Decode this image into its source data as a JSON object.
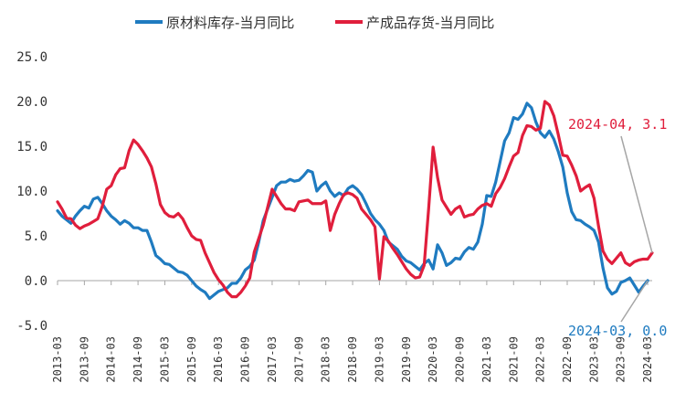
{
  "chart_data": {
    "type": "line",
    "title": "",
    "xlabel": "",
    "ylabel": "",
    "ylim": [
      -5,
      25
    ],
    "yticks": [
      "25.0",
      "20.0",
      "15.0",
      "10.0",
      "5.0",
      "0.0",
      "-5.0"
    ],
    "xticks": [
      "2013-03",
      "2013-09",
      "2014-03",
      "2014-09",
      "2015-03",
      "2015-09",
      "2016-03",
      "2016-09",
      "2017-03",
      "2017-09",
      "2018-03",
      "2018-09",
      "2019-03",
      "2019-09",
      "2020-03",
      "2020-09",
      "2021-03",
      "2021-09",
      "2022-03",
      "2022-09",
      "2023-03",
      "2023-09",
      "2024-03"
    ],
    "grid": false,
    "legend_position": "top",
    "series": [
      {
        "name": "原材料库存-当月同比",
        "color": "#1f7bc0",
        "points": [
          [
            "2013-03",
            7.8
          ],
          [
            "2013-04",
            7.2
          ],
          [
            "2013-05",
            6.8
          ],
          [
            "2013-06",
            6.4
          ],
          [
            "2013-07",
            7.2
          ],
          [
            "2013-08",
            7.8
          ],
          [
            "2013-09",
            8.3
          ],
          [
            "2013-10",
            8.1
          ],
          [
            "2013-11",
            9.1
          ],
          [
            "2013-12",
            9.3
          ],
          [
            "2014-01",
            8.6
          ],
          [
            "2014-02",
            7.8
          ],
          [
            "2014-03",
            7.2
          ],
          [
            "2014-04",
            6.8
          ],
          [
            "2014-05",
            6.3
          ],
          [
            "2014-06",
            6.7
          ],
          [
            "2014-07",
            6.4
          ],
          [
            "2014-08",
            5.9
          ],
          [
            "2014-09",
            5.9
          ],
          [
            "2014-10",
            5.6
          ],
          [
            "2014-11",
            5.6
          ],
          [
            "2014-12",
            4.3
          ],
          [
            "2015-01",
            2.8
          ],
          [
            "2015-02",
            2.4
          ],
          [
            "2015-03",
            1.9
          ],
          [
            "2015-04",
            1.8
          ],
          [
            "2015-05",
            1.4
          ],
          [
            "2015-06",
            1.0
          ],
          [
            "2015-07",
            0.9
          ],
          [
            "2015-08",
            0.6
          ],
          [
            "2015-09",
            0.0
          ],
          [
            "2015-10",
            -0.6
          ],
          [
            "2015-11",
            -1.0
          ],
          [
            "2015-12",
            -1.3
          ],
          [
            "2016-01",
            -2.0
          ],
          [
            "2016-02",
            -1.6
          ],
          [
            "2016-03",
            -1.2
          ],
          [
            "2016-04",
            -1.0
          ],
          [
            "2016-05",
            -0.8
          ],
          [
            "2016-06",
            -0.3
          ],
          [
            "2016-07",
            -0.3
          ],
          [
            "2016-08",
            0.3
          ],
          [
            "2016-09",
            1.2
          ],
          [
            "2016-10",
            1.6
          ],
          [
            "2016-11",
            2.3
          ],
          [
            "2016-12",
            4.3
          ],
          [
            "2017-01",
            6.7
          ],
          [
            "2017-02",
            8.0
          ],
          [
            "2017-03",
            9.3
          ],
          [
            "2017-04",
            10.6
          ],
          [
            "2017-05",
            11.0
          ],
          [
            "2017-06",
            11.0
          ],
          [
            "2017-07",
            11.3
          ],
          [
            "2017-08",
            11.1
          ],
          [
            "2017-09",
            11.2
          ],
          [
            "2017-10",
            11.7
          ],
          [
            "2017-11",
            12.3
          ],
          [
            "2017-12",
            12.1
          ],
          [
            "2018-01",
            10.0
          ],
          [
            "2018-02",
            10.6
          ],
          [
            "2018-03",
            11.0
          ],
          [
            "2018-04",
            10.0
          ],
          [
            "2018-05",
            9.4
          ],
          [
            "2018-06",
            9.8
          ],
          [
            "2018-07",
            9.5
          ],
          [
            "2018-08",
            10.3
          ],
          [
            "2018-09",
            10.6
          ],
          [
            "2018-10",
            10.2
          ],
          [
            "2018-11",
            9.6
          ],
          [
            "2018-12",
            8.6
          ],
          [
            "2019-01",
            7.5
          ],
          [
            "2019-02",
            6.8
          ],
          [
            "2019-03",
            6.3
          ],
          [
            "2019-04",
            5.6
          ],
          [
            "2019-05",
            4.3
          ],
          [
            "2019-06",
            3.9
          ],
          [
            "2019-07",
            3.5
          ],
          [
            "2019-08",
            2.7
          ],
          [
            "2019-09",
            2.2
          ],
          [
            "2019-10",
            2.0
          ],
          [
            "2019-11",
            1.6
          ],
          [
            "2019-12",
            1.2
          ],
          [
            "2020-01",
            1.9
          ],
          [
            "2020-02",
            2.3
          ],
          [
            "2020-03",
            1.3
          ],
          [
            "2020-04",
            4.0
          ],
          [
            "2020-05",
            3.1
          ],
          [
            "2020-06",
            1.7
          ],
          [
            "2020-07",
            2.0
          ],
          [
            "2020-08",
            2.5
          ],
          [
            "2020-09",
            2.4
          ],
          [
            "2020-10",
            3.2
          ],
          [
            "2020-11",
            3.7
          ],
          [
            "2020-12",
            3.5
          ],
          [
            "2021-01",
            4.3
          ],
          [
            "2021-02",
            6.3
          ],
          [
            "2021-03",
            9.5
          ],
          [
            "2021-04",
            9.4
          ],
          [
            "2021-05",
            11.0
          ],
          [
            "2021-06",
            13.3
          ],
          [
            "2021-07",
            15.6
          ],
          [
            "2021-08",
            16.5
          ],
          [
            "2021-09",
            18.2
          ],
          [
            "2021-10",
            18.0
          ],
          [
            "2021-11",
            18.6
          ],
          [
            "2021-12",
            19.8
          ],
          [
            "2022-01",
            19.3
          ],
          [
            "2022-02",
            17.7
          ],
          [
            "2022-03",
            16.5
          ],
          [
            "2022-04",
            16.0
          ],
          [
            "2022-05",
            16.7
          ],
          [
            "2022-06",
            15.8
          ],
          [
            "2022-07",
            14.4
          ],
          [
            "2022-08",
            12.7
          ],
          [
            "2022-09",
            9.8
          ],
          [
            "2022-10",
            7.7
          ],
          [
            "2022-11",
            6.8
          ],
          [
            "2022-12",
            6.7
          ],
          [
            "2023-01",
            6.3
          ],
          [
            "2023-02",
            6.0
          ],
          [
            "2023-03",
            5.6
          ],
          [
            "2023-04",
            4.3
          ],
          [
            "2023-05",
            1.4
          ],
          [
            "2023-06",
            -0.8
          ],
          [
            "2023-07",
            -1.5
          ],
          [
            "2023-08",
            -1.2
          ],
          [
            "2023-09",
            -0.2
          ],
          [
            "2023-10",
            0.0
          ],
          [
            "2023-11",
            0.3
          ],
          [
            "2023-12",
            -0.5
          ],
          [
            "2024-01",
            -1.3
          ],
          [
            "2024-02",
            -0.6
          ],
          [
            "2024-03",
            0.0
          ]
        ]
      },
      {
        "name": "产成品存货-当月同比",
        "color": "#e01e3c",
        "points": [
          [
            "2013-03",
            8.8
          ],
          [
            "2013-04",
            8.0
          ],
          [
            "2013-05",
            7.0
          ],
          [
            "2013-06",
            6.9
          ],
          [
            "2013-07",
            6.2
          ],
          [
            "2013-08",
            5.8
          ],
          [
            "2013-09",
            6.1
          ],
          [
            "2013-10",
            6.3
          ],
          [
            "2013-11",
            6.6
          ],
          [
            "2013-12",
            6.9
          ],
          [
            "2014-01",
            8.3
          ],
          [
            "2014-02",
            10.2
          ],
          [
            "2014-03",
            10.6
          ],
          [
            "2014-04",
            11.8
          ],
          [
            "2014-05",
            12.5
          ],
          [
            "2014-06",
            12.6
          ],
          [
            "2014-07",
            14.5
          ],
          [
            "2014-08",
            15.7
          ],
          [
            "2014-09",
            15.2
          ],
          [
            "2014-10",
            14.5
          ],
          [
            "2014-11",
            13.7
          ],
          [
            "2014-12",
            12.7
          ],
          [
            "2015-01",
            10.8
          ],
          [
            "2015-02",
            8.5
          ],
          [
            "2015-03",
            7.6
          ],
          [
            "2015-04",
            7.2
          ],
          [
            "2015-05",
            7.1
          ],
          [
            "2015-06",
            7.5
          ],
          [
            "2015-07",
            6.9
          ],
          [
            "2015-08",
            5.9
          ],
          [
            "2015-09",
            5.0
          ],
          [
            "2015-10",
            4.6
          ],
          [
            "2015-11",
            4.5
          ],
          [
            "2015-12",
            3.1
          ],
          [
            "2016-01",
            2.0
          ],
          [
            "2016-02",
            0.9
          ],
          [
            "2016-03",
            0.1
          ],
          [
            "2016-04",
            -0.5
          ],
          [
            "2016-05",
            -1.3
          ],
          [
            "2016-06",
            -1.8
          ],
          [
            "2016-07",
            -1.8
          ],
          [
            "2016-08",
            -1.3
          ],
          [
            "2016-09",
            -0.6
          ],
          [
            "2016-10",
            0.3
          ],
          [
            "2016-11",
            3.2
          ],
          [
            "2016-12",
            4.7
          ],
          [
            "2017-01",
            6.2
          ],
          [
            "2017-02",
            8.2
          ],
          [
            "2017-03",
            10.2
          ],
          [
            "2017-04",
            9.4
          ],
          [
            "2017-05",
            8.6
          ],
          [
            "2017-06",
            8.0
          ],
          [
            "2017-07",
            8.0
          ],
          [
            "2017-08",
            7.8
          ],
          [
            "2017-09",
            8.8
          ],
          [
            "2017-10",
            8.9
          ],
          [
            "2017-11",
            9.0
          ],
          [
            "2017-12",
            8.6
          ],
          [
            "2018-01",
            8.6
          ],
          [
            "2018-02",
            8.6
          ],
          [
            "2018-03",
            8.9
          ],
          [
            "2018-04",
            5.6
          ],
          [
            "2018-05",
            7.4
          ],
          [
            "2018-06",
            8.6
          ],
          [
            "2018-07",
            9.6
          ],
          [
            "2018-08",
            9.8
          ],
          [
            "2018-09",
            9.6
          ],
          [
            "2018-10",
            9.2
          ],
          [
            "2018-11",
            8.0
          ],
          [
            "2018-12",
            7.4
          ],
          [
            "2019-01",
            6.8
          ],
          [
            "2019-02",
            6.0
          ],
          [
            "2019-03",
            0.2
          ],
          [
            "2019-04",
            4.9
          ],
          [
            "2019-05",
            4.4
          ],
          [
            "2019-06",
            3.6
          ],
          [
            "2019-07",
            2.9
          ],
          [
            "2019-08",
            2.1
          ],
          [
            "2019-09",
            1.3
          ],
          [
            "2019-10",
            0.7
          ],
          [
            "2019-11",
            0.3
          ],
          [
            "2019-12",
            0.4
          ],
          [
            "2020-01",
            1.7
          ],
          [
            "2020-02",
            8.0
          ],
          [
            "2020-03",
            14.9
          ],
          [
            "2020-04",
            11.5
          ],
          [
            "2020-05",
            9.0
          ],
          [
            "2020-06",
            8.2
          ],
          [
            "2020-07",
            7.4
          ],
          [
            "2020-08",
            8.0
          ],
          [
            "2020-09",
            8.3
          ],
          [
            "2020-10",
            7.1
          ],
          [
            "2020-11",
            7.3
          ],
          [
            "2020-12",
            7.4
          ],
          [
            "2021-01",
            8.0
          ],
          [
            "2021-02",
            8.4
          ],
          [
            "2021-03",
            8.6
          ],
          [
            "2021-04",
            8.3
          ],
          [
            "2021-05",
            9.7
          ],
          [
            "2021-06",
            10.4
          ],
          [
            "2021-07",
            11.4
          ],
          [
            "2021-08",
            12.7
          ],
          [
            "2021-09",
            13.9
          ],
          [
            "2021-10",
            14.3
          ],
          [
            "2021-11",
            16.2
          ],
          [
            "2021-12",
            17.3
          ],
          [
            "2022-01",
            17.2
          ],
          [
            "2022-02",
            16.8
          ],
          [
            "2022-03",
            17.0
          ],
          [
            "2022-04",
            20.0
          ],
          [
            "2022-05",
            19.6
          ],
          [
            "2022-06",
            18.4
          ],
          [
            "2022-07",
            16.3
          ],
          [
            "2022-08",
            14.0
          ],
          [
            "2022-09",
            13.9
          ],
          [
            "2022-10",
            12.9
          ],
          [
            "2022-11",
            11.7
          ],
          [
            "2022-12",
            10.0
          ],
          [
            "2023-01",
            10.4
          ],
          [
            "2023-02",
            10.7
          ],
          [
            "2023-03",
            9.2
          ],
          [
            "2023-04",
            6.1
          ],
          [
            "2023-05",
            3.3
          ],
          [
            "2023-06",
            2.4
          ],
          [
            "2023-07",
            1.9
          ],
          [
            "2023-08",
            2.5
          ],
          [
            "2023-09",
            3.1
          ],
          [
            "2023-10",
            2.0
          ],
          [
            "2023-11",
            1.7
          ],
          [
            "2023-12",
            2.1
          ],
          [
            "2024-01",
            2.3
          ],
          [
            "2024-02",
            2.4
          ],
          [
            "2024-03",
            2.4
          ],
          [
            "2024-04",
            3.1
          ]
        ]
      }
    ],
    "annotations": [
      {
        "text": "2024-04, 3.1",
        "series": 1,
        "x": "2024-04",
        "y": 3.1,
        "color": "#e01e3c"
      },
      {
        "text": "2024-03, 0.0",
        "series": 0,
        "x": "2024-03",
        "y": 0.0,
        "color": "#1f7bc0"
      }
    ]
  }
}
